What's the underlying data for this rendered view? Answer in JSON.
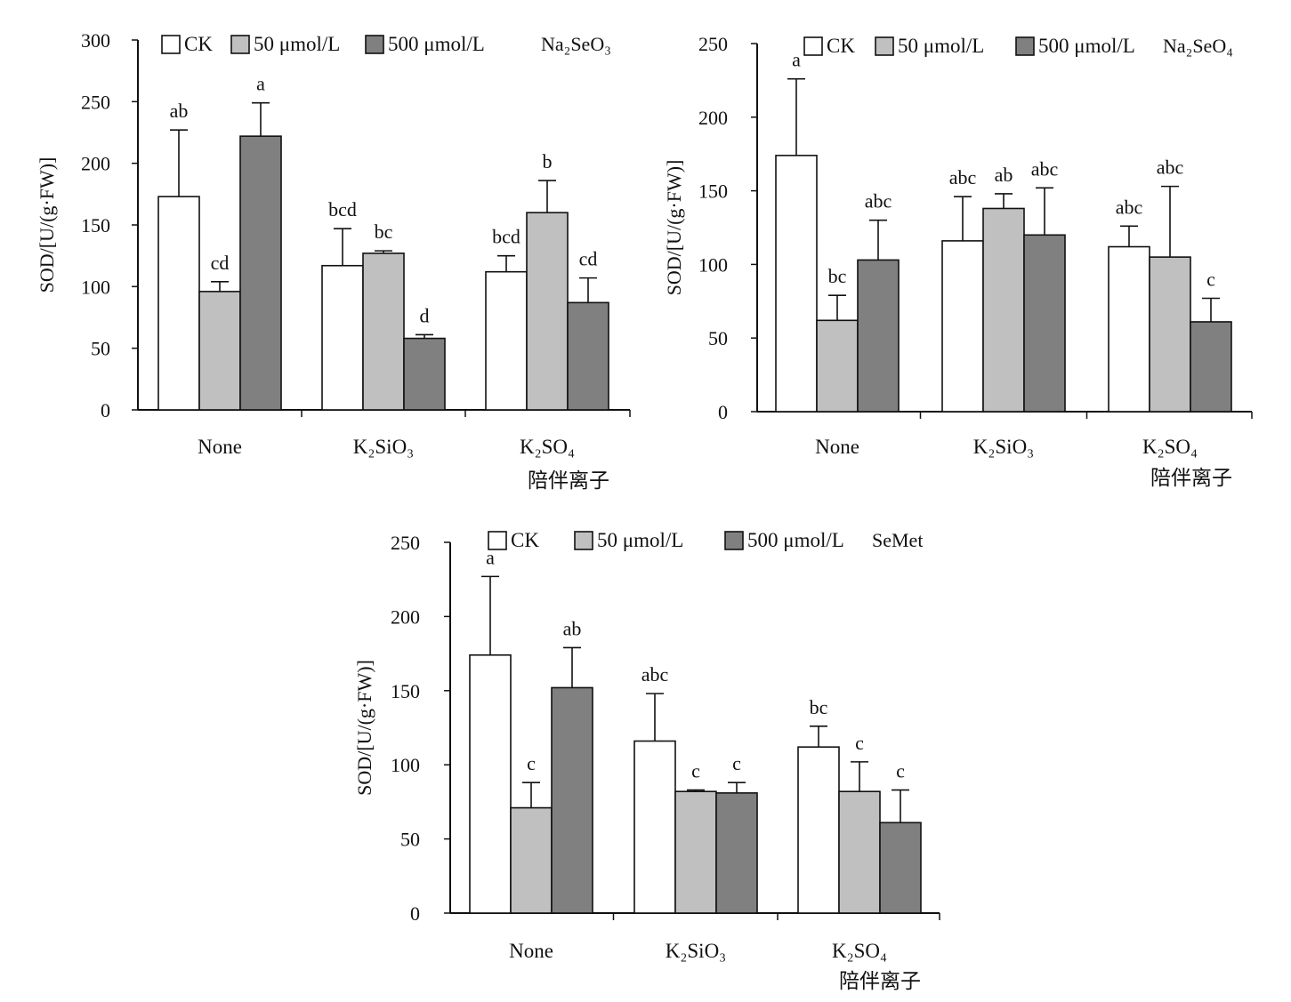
{
  "legend": [
    "CK",
    "50 μmol/L",
    "500 μmol/L"
  ],
  "colors": {
    "CK": "#ffffff",
    "50 μmol/L": "#c0c0c0",
    "500 μmol/L": "#808080",
    "stroke": "#111111"
  },
  "xlabel": "陪伴离子",
  "ylabel": "SOD/[U/(g·FW)]",
  "chart_data": [
    {
      "type": "bar",
      "compound": "Na₂SeO₃",
      "categories": [
        "None",
        "K₂SiO₃",
        "K₂SO₄"
      ],
      "ylim": [
        0,
        300
      ],
      "yticks": [
        0,
        50,
        100,
        150,
        200,
        250,
        300
      ],
      "series": [
        {
          "name": "CK",
          "values": [
            173,
            117,
            112
          ],
          "errors": [
            54,
            30,
            13
          ],
          "labels": [
            "ab",
            "bcd",
            "bcd"
          ]
        },
        {
          "name": "50 μmol/L",
          "values": [
            96,
            127,
            160
          ],
          "errors": [
            8,
            2,
            26
          ],
          "labels": [
            "cd",
            "bc",
            "b"
          ]
        },
        {
          "name": "500 μmol/L",
          "values": [
            222,
            58,
            87
          ],
          "errors": [
            27,
            3,
            20
          ],
          "labels": [
            "a",
            "d",
            "cd"
          ]
        }
      ],
      "xlabel": "陪伴离子",
      "ylabel": "SOD/[U/(g·FW)]",
      "legend_position": "top"
    },
    {
      "type": "bar",
      "compound": "Na₂SeO₄",
      "categories": [
        "None",
        "K₂SiO₃",
        "K₂SO₄"
      ],
      "ylim": [
        0,
        250
      ],
      "yticks": [
        0,
        50,
        100,
        150,
        200,
        250
      ],
      "series": [
        {
          "name": "CK",
          "values": [
            174,
            116,
            112
          ],
          "errors": [
            52,
            30,
            14
          ],
          "labels": [
            "a",
            "abc",
            "abc"
          ]
        },
        {
          "name": "50 μmol/L",
          "values": [
            62,
            138,
            105
          ],
          "errors": [
            17,
            10,
            48
          ],
          "labels": [
            "bc",
            "ab",
            "abc"
          ]
        },
        {
          "name": "500 μmol/L",
          "values": [
            103,
            120,
            61
          ],
          "errors": [
            27,
            32,
            16
          ],
          "labels": [
            "abc",
            "abc",
            "c"
          ]
        }
      ],
      "xlabel": "陪伴离子",
      "ylabel": "SOD/[U/(g·FW)]",
      "legend_position": "top"
    },
    {
      "type": "bar",
      "compound": "SeMet",
      "categories": [
        "None",
        "K₂SiO₃",
        "K₂SO₄"
      ],
      "ylim": [
        0,
        250
      ],
      "yticks": [
        0,
        50,
        100,
        150,
        200,
        250
      ],
      "series": [
        {
          "name": "CK",
          "values": [
            174,
            116,
            112
          ],
          "errors": [
            53,
            32,
            14
          ],
          "labels": [
            "a",
            "abc",
            "bc"
          ]
        },
        {
          "name": "50 μmol/L",
          "values": [
            71,
            82,
            82
          ],
          "errors": [
            17,
            1,
            20
          ],
          "labels": [
            "c",
            "c",
            "c"
          ]
        },
        {
          "name": "500 μmol/L",
          "values": [
            152,
            81,
            61
          ],
          "errors": [
            27,
            7,
            22
          ],
          "labels": [
            "ab",
            "c",
            "c"
          ]
        }
      ],
      "xlabel": "陪伴离子",
      "ylabel": "SOD/[U/(g·FW)]",
      "legend_position": "top"
    }
  ]
}
